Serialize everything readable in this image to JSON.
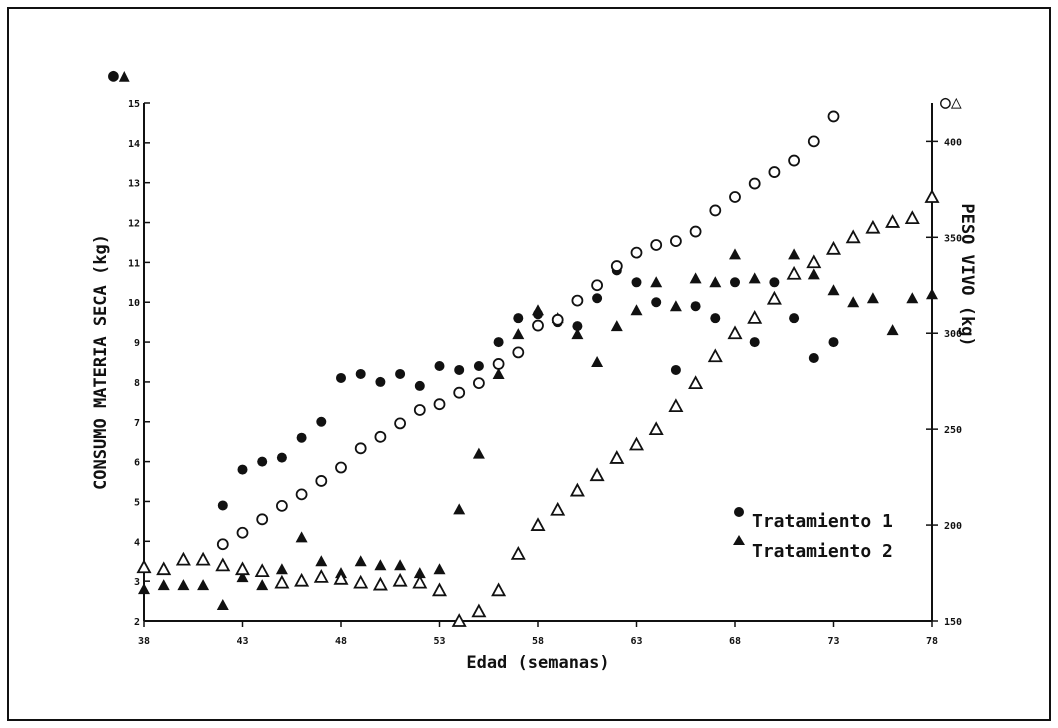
{
  "chart_data": {
    "type": "scatter",
    "xlabel": "Edad (semanas)",
    "ylabel_left": "CONSUMO MATERIA SECA (kg)",
    "ylabel_right": "PESO VIVO (kg)",
    "left_axis_symbols": "●▲",
    "right_axis_symbols": "○△",
    "xlim": [
      38,
      78
    ],
    "x_ticks": [
      38,
      43,
      48,
      53,
      58,
      63,
      68,
      73,
      78
    ],
    "ylim_left": [
      2,
      15
    ],
    "y_left_ticks": [
      2,
      3,
      4,
      5,
      6,
      7,
      8,
      9,
      10,
      11,
      12,
      13,
      14,
      15
    ],
    "ylim_right": [
      150,
      420
    ],
    "y_right_ticks": [
      150,
      200,
      250,
      300,
      350,
      400
    ],
    "grid": false,
    "legend_position": "bottom-right",
    "series": [
      {
        "name": "Tratamiento 1",
        "measure": "consumo",
        "axis": "left",
        "marker": "filled-circle",
        "x": [
          42,
          43,
          44,
          45,
          46,
          47,
          48,
          49,
          50,
          51,
          52,
          53,
          54,
          55,
          56,
          57,
          58,
          59,
          60,
          61,
          62,
          63,
          64,
          65,
          66,
          67,
          68,
          69,
          70,
          71,
          72,
          73
        ],
        "y": [
          4.9,
          5.8,
          6.0,
          6.1,
          6.6,
          7.0,
          8.1,
          8.2,
          8.0,
          8.2,
          7.9,
          8.4,
          8.3,
          8.4,
          9.0,
          9.6,
          9.7,
          9.5,
          9.4,
          10.1,
          10.8,
          10.5,
          10.0,
          8.3,
          9.9,
          9.6,
          10.5,
          9.0,
          10.5,
          9.6,
          8.6,
          9.0
        ]
      },
      {
        "name": "Tratamiento 2",
        "measure": "consumo",
        "axis": "left",
        "marker": "filled-triangle",
        "x": [
          38,
          39,
          40,
          41,
          42,
          43,
          44,
          45,
          46,
          47,
          48,
          49,
          50,
          51,
          52,
          53,
          54,
          55,
          56,
          57,
          58,
          59,
          60,
          61,
          62,
          63,
          64,
          65,
          66,
          67,
          68,
          69,
          70,
          71,
          72,
          73,
          74,
          75,
          76,
          77,
          78
        ],
        "y": [
          2.8,
          2.9,
          2.9,
          2.9,
          2.4,
          3.1,
          2.9,
          3.3,
          4.1,
          3.5,
          3.2,
          3.5,
          3.4,
          3.4,
          3.2,
          3.3,
          4.8,
          6.2,
          8.2,
          9.2,
          9.8,
          9.6,
          9.2,
          8.5,
          9.4,
          9.8,
          10.5,
          9.9,
          10.6,
          10.5,
          11.2,
          10.6,
          10.1,
          11.2,
          10.7,
          10.3,
          10.0,
          10.1,
          9.3,
          10.1,
          10.2
        ]
      },
      {
        "name": "Tratamiento 1",
        "measure": "peso vivo",
        "axis": "right",
        "marker": "open-circle",
        "x": [
          42,
          43,
          44,
          45,
          46,
          47,
          48,
          49,
          50,
          51,
          52,
          53,
          54,
          55,
          56,
          57,
          58,
          59,
          60,
          61,
          62,
          63,
          64,
          65,
          66,
          67,
          68,
          69,
          70,
          71,
          72,
          73
        ],
        "y": [
          190,
          196,
          203,
          210,
          216,
          223,
          230,
          240,
          246,
          253,
          260,
          263,
          269,
          274,
          284,
          290,
          304,
          307,
          317,
          325,
          335,
          342,
          346,
          348,
          353,
          364,
          371,
          378,
          384,
          390,
          400,
          413
        ]
      },
      {
        "name": "Tratamiento 2",
        "measure": "peso vivo",
        "axis": "right",
        "marker": "open-triangle",
        "x": [
          38,
          39,
          40,
          41,
          42,
          43,
          44,
          45,
          46,
          47,
          48,
          49,
          50,
          51,
          52,
          53,
          54,
          55,
          56,
          57,
          58,
          59,
          60,
          61,
          62,
          63,
          64,
          65,
          66,
          67,
          68,
          69,
          70,
          71,
          72,
          73,
          74,
          75,
          76,
          77,
          78
        ],
        "y": [
          178,
          177,
          182,
          182,
          179,
          177,
          176,
          170,
          171,
          173,
          172,
          170,
          169,
          171,
          170,
          166,
          150,
          155,
          166,
          185,
          200,
          208,
          218,
          226,
          235,
          242,
          250,
          262,
          274,
          288,
          300,
          308,
          318,
          331,
          337,
          344,
          350,
          355,
          358,
          360,
          371
        ]
      }
    ]
  }
}
